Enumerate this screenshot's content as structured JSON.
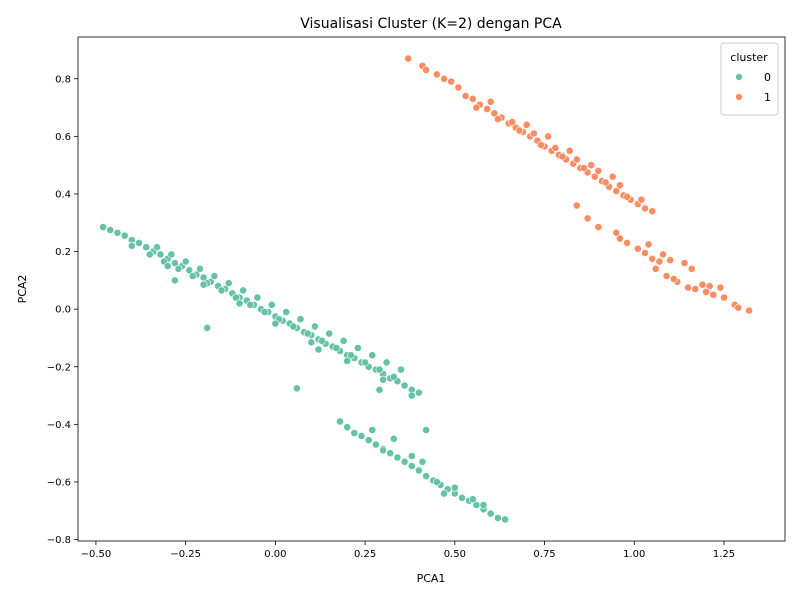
{
  "chart_data": {
    "type": "scatter",
    "title": "Visualisasi Cluster (K=2) dengan PCA",
    "xlabel": "PCA1",
    "ylabel": "PCA2",
    "xlim": [
      -0.55,
      1.42
    ],
    "ylim": [
      -0.805,
      0.945
    ],
    "xticks": [
      -0.5,
      -0.25,
      0.0,
      0.25,
      0.5,
      0.75,
      1.0,
      1.25
    ],
    "xtick_labels": [
      "−0.50",
      "−0.25",
      "0.00",
      "0.25",
      "0.50",
      "0.75",
      "1.00",
      "1.25"
    ],
    "yticks": [
      -0.8,
      -0.6,
      -0.4,
      -0.2,
      0.0,
      0.2,
      0.4,
      0.6,
      0.8
    ],
    "ytick_labels": [
      "−0.8",
      "−0.6",
      "−0.4",
      "−0.2",
      "0.0",
      "0.2",
      "0.4",
      "0.6",
      "0.8"
    ],
    "grid": false,
    "legend": {
      "title": "cluster",
      "placement": "top-right",
      "entries": [
        {
          "label": "0",
          "color": "#66c2a5"
        },
        {
          "label": "1",
          "color": "#fc8d62"
        }
      ]
    },
    "series": [
      {
        "name": "0",
        "color": "#66c2a5",
        "points": [
          [
            -0.48,
            0.285
          ],
          [
            -0.46,
            0.275
          ],
          [
            -0.44,
            0.265
          ],
          [
            -0.42,
            0.255
          ],
          [
            -0.4,
            0.24
          ],
          [
            -0.38,
            0.23
          ],
          [
            -0.36,
            0.215
          ],
          [
            -0.34,
            0.2
          ],
          [
            -0.32,
            0.19
          ],
          [
            -0.3,
            0.175
          ],
          [
            -0.28,
            0.16
          ],
          [
            -0.26,
            0.15
          ],
          [
            -0.24,
            0.135
          ],
          [
            -0.22,
            0.12
          ],
          [
            -0.2,
            0.11
          ],
          [
            -0.18,
            0.095
          ],
          [
            -0.16,
            0.08
          ],
          [
            -0.14,
            0.07
          ],
          [
            -0.12,
            0.055
          ],
          [
            -0.1,
            0.04
          ],
          [
            -0.08,
            0.03
          ],
          [
            -0.06,
            0.015
          ],
          [
            -0.04,
            0.0
          ],
          [
            -0.02,
            -0.01
          ],
          [
            0.0,
            -0.025
          ],
          [
            0.02,
            -0.04
          ],
          [
            0.04,
            -0.05
          ],
          [
            0.06,
            -0.065
          ],
          [
            0.08,
            -0.08
          ],
          [
            0.1,
            -0.09
          ],
          [
            0.12,
            -0.105
          ],
          [
            0.14,
            -0.12
          ],
          [
            0.16,
            -0.13
          ],
          [
            0.18,
            -0.145
          ],
          [
            0.2,
            -0.16
          ],
          [
            0.22,
            -0.17
          ],
          [
            0.24,
            -0.185
          ],
          [
            0.26,
            -0.2
          ],
          [
            0.28,
            -0.21
          ],
          [
            0.3,
            -0.225
          ],
          [
            0.32,
            -0.24
          ],
          [
            0.34,
            -0.25
          ],
          [
            0.36,
            -0.265
          ],
          [
            0.38,
            -0.28
          ],
          [
            0.4,
            -0.29
          ],
          [
            -0.35,
            0.19
          ],
          [
            -0.31,
            0.165
          ],
          [
            -0.27,
            0.14
          ],
          [
            -0.23,
            0.115
          ],
          [
            -0.19,
            0.09
          ],
          [
            -0.15,
            0.065
          ],
          [
            -0.11,
            0.04
          ],
          [
            -0.07,
            0.015
          ],
          [
            -0.03,
            -0.01
          ],
          [
            0.01,
            -0.035
          ],
          [
            0.05,
            -0.06
          ],
          [
            0.09,
            -0.085
          ],
          [
            0.13,
            -0.11
          ],
          [
            0.17,
            -0.135
          ],
          [
            0.21,
            -0.16
          ],
          [
            0.25,
            -0.185
          ],
          [
            0.29,
            -0.21
          ],
          [
            0.33,
            -0.235
          ],
          [
            -0.33,
            0.215
          ],
          [
            -0.29,
            0.19
          ],
          [
            -0.25,
            0.165
          ],
          [
            -0.21,
            0.14
          ],
          [
            -0.17,
            0.115
          ],
          [
            -0.13,
            0.09
          ],
          [
            -0.09,
            0.065
          ],
          [
            -0.05,
            0.04
          ],
          [
            -0.01,
            0.015
          ],
          [
            0.03,
            -0.01
          ],
          [
            0.07,
            -0.035
          ],
          [
            0.11,
            -0.06
          ],
          [
            0.15,
            -0.085
          ],
          [
            0.19,
            -0.11
          ],
          [
            0.23,
            -0.135
          ],
          [
            0.27,
            -0.16
          ],
          [
            0.31,
            -0.185
          ],
          [
            0.35,
            -0.21
          ],
          [
            -0.4,
            0.22
          ],
          [
            -0.3,
            0.15
          ],
          [
            -0.2,
            0.085
          ],
          [
            -0.1,
            0.02
          ],
          [
            0.0,
            -0.05
          ],
          [
            0.1,
            -0.115
          ],
          [
            0.2,
            -0.18
          ],
          [
            0.3,
            -0.245
          ],
          [
            0.38,
            -0.3
          ],
          [
            0.42,
            -0.42
          ],
          [
            0.18,
            -0.39
          ],
          [
            0.2,
            -0.41
          ],
          [
            0.22,
            -0.43
          ],
          [
            0.24,
            -0.44
          ],
          [
            0.26,
            -0.455
          ],
          [
            0.28,
            -0.47
          ],
          [
            0.3,
            -0.485
          ],
          [
            0.32,
            -0.5
          ],
          [
            0.34,
            -0.515
          ],
          [
            0.36,
            -0.53
          ],
          [
            0.38,
            -0.545
          ],
          [
            0.4,
            -0.56
          ],
          [
            0.42,
            -0.58
          ],
          [
            0.44,
            -0.595
          ],
          [
            0.46,
            -0.61
          ],
          [
            0.48,
            -0.625
          ],
          [
            0.5,
            -0.64
          ],
          [
            0.52,
            -0.655
          ],
          [
            0.54,
            -0.665
          ],
          [
            0.56,
            -0.68
          ],
          [
            0.58,
            -0.695
          ],
          [
            0.6,
            -0.71
          ],
          [
            0.62,
            -0.725
          ],
          [
            0.64,
            -0.73
          ],
          [
            0.27,
            -0.42
          ],
          [
            0.33,
            -0.45
          ],
          [
            0.3,
            -0.49
          ],
          [
            0.38,
            -0.51
          ],
          [
            0.41,
            -0.53
          ],
          [
            0.45,
            -0.6
          ],
          [
            0.5,
            -0.62
          ],
          [
            0.55,
            -0.66
          ],
          [
            0.47,
            -0.64
          ],
          [
            0.58,
            -0.68
          ],
          [
            -0.19,
            -0.065
          ],
          [
            0.06,
            -0.275
          ],
          [
            0.29,
            -0.28
          ],
          [
            0.12,
            -0.14
          ],
          [
            -0.28,
            0.1
          ]
        ]
      },
      {
        "name": "1",
        "color": "#fc8d62",
        "points": [
          [
            0.37,
            0.87
          ],
          [
            0.41,
            0.845
          ],
          [
            0.42,
            0.83
          ],
          [
            0.45,
            0.815
          ],
          [
            0.47,
            0.8
          ],
          [
            0.49,
            0.79
          ],
          [
            0.51,
            0.77
          ],
          [
            0.53,
            0.74
          ],
          [
            0.55,
            0.73
          ],
          [
            0.57,
            0.71
          ],
          [
            0.59,
            0.695
          ],
          [
            0.61,
            0.68
          ],
          [
            0.63,
            0.665
          ],
          [
            0.65,
            0.645
          ],
          [
            0.67,
            0.63
          ],
          [
            0.69,
            0.615
          ],
          [
            0.71,
            0.6
          ],
          [
            0.73,
            0.585
          ],
          [
            0.75,
            0.565
          ],
          [
            0.77,
            0.55
          ],
          [
            0.79,
            0.535
          ],
          [
            0.81,
            0.52
          ],
          [
            0.83,
            0.505
          ],
          [
            0.85,
            0.49
          ],
          [
            0.87,
            0.475
          ],
          [
            0.89,
            0.46
          ],
          [
            0.91,
            0.445
          ],
          [
            0.93,
            0.425
          ],
          [
            0.95,
            0.41
          ],
          [
            0.97,
            0.395
          ],
          [
            0.99,
            0.38
          ],
          [
            1.01,
            0.365
          ],
          [
            1.03,
            0.35
          ],
          [
            1.05,
            0.34
          ],
          [
            0.56,
            0.7
          ],
          [
            0.62,
            0.66
          ],
          [
            0.68,
            0.62
          ],
          [
            0.74,
            0.57
          ],
          [
            0.8,
            0.53
          ],
          [
            0.86,
            0.49
          ],
          [
            0.92,
            0.44
          ],
          [
            0.98,
            0.39
          ],
          [
            0.6,
            0.72
          ],
          [
            0.66,
            0.65
          ],
          [
            0.72,
            0.61
          ],
          [
            0.78,
            0.56
          ],
          [
            0.84,
            0.52
          ],
          [
            0.9,
            0.48
          ],
          [
            0.96,
            0.43
          ],
          [
            1.02,
            0.38
          ],
          [
            0.7,
            0.64
          ],
          [
            0.76,
            0.6
          ],
          [
            0.82,
            0.55
          ],
          [
            0.88,
            0.5
          ],
          [
            0.94,
            0.46
          ],
          [
            0.84,
            0.36
          ],
          [
            0.87,
            0.315
          ],
          [
            0.9,
            0.285
          ],
          [
            0.95,
            0.265
          ],
          [
            0.96,
            0.245
          ],
          [
            0.98,
            0.23
          ],
          [
            1.01,
            0.21
          ],
          [
            1.03,
            0.195
          ],
          [
            1.04,
            0.225
          ],
          [
            1.05,
            0.175
          ],
          [
            1.07,
            0.165
          ],
          [
            1.08,
            0.19
          ],
          [
            1.1,
            0.17
          ],
          [
            1.09,
            0.115
          ],
          [
            1.12,
            0.095
          ],
          [
            1.14,
            0.16
          ],
          [
            1.15,
            0.075
          ],
          [
            1.17,
            0.07
          ],
          [
            1.19,
            0.085
          ],
          [
            1.21,
            0.08
          ],
          [
            1.22,
            0.05
          ],
          [
            1.24,
            0.075
          ],
          [
            1.25,
            0.04
          ],
          [
            1.28,
            0.015
          ],
          [
            1.29,
            0.005
          ],
          [
            1.32,
            -0.005
          ],
          [
            1.06,
            0.14
          ],
          [
            1.11,
            0.105
          ],
          [
            1.16,
            0.14
          ],
          [
            1.2,
            0.06
          ]
        ]
      }
    ]
  }
}
